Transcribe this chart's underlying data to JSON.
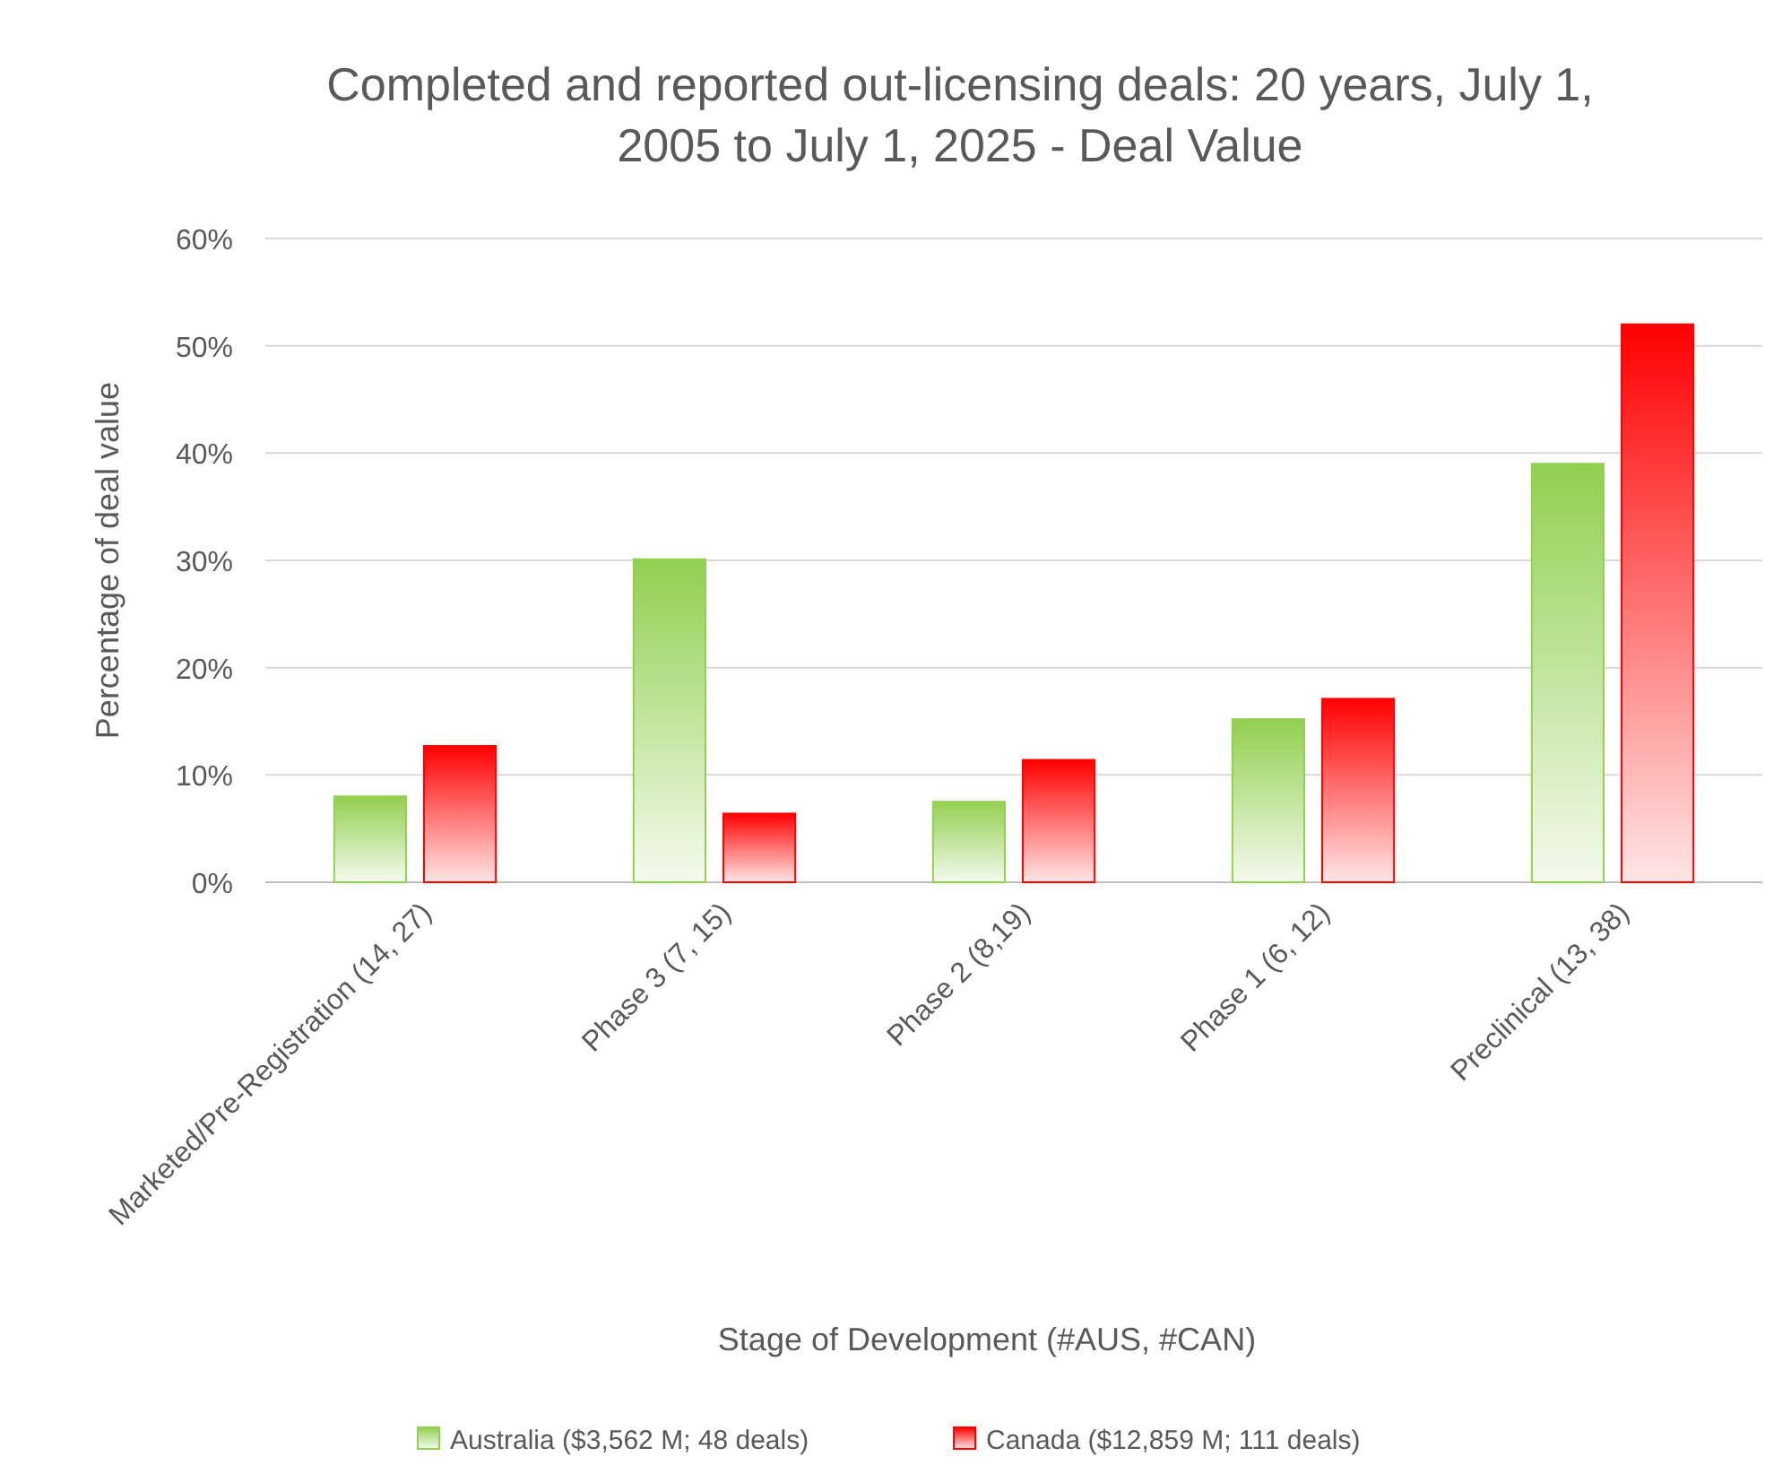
{
  "chart_data": {
    "type": "bar",
    "title": "Completed and reported out-licensing deals: 20 years, July 1, 2005 to July 1, 2025 - Deal Value",
    "xlabel": "Stage of Development (#AUS, #CAN)",
    "ylabel": "Percentage of deal value",
    "categories": [
      "Marketed/Pre-Registration (14, 27)",
      "Phase 3 (7, 15)",
      "Phase 2 (8,19)",
      "Phase 1 (6, 12)",
      "Preclinical (13, 38)"
    ],
    "series": [
      {
        "name": "Australia ($3,562 M; 48 deals)",
        "color": "#92d050",
        "values": [
          8.0,
          30.1,
          7.5,
          15.2,
          39.0
        ]
      },
      {
        "name": "Canada ($12,859 M; 111 deals)",
        "color": "#ff0000",
        "values": [
          12.7,
          6.4,
          11.4,
          17.1,
          52.0
        ]
      }
    ],
    "ylim": [
      0,
      60
    ],
    "yticks": [
      {
        "value": 0,
        "label": "0%"
      },
      {
        "value": 10,
        "label": "10%"
      },
      {
        "value": 20,
        "label": "20%"
      },
      {
        "value": 30,
        "label": "30%"
      },
      {
        "value": 40,
        "label": "40%"
      },
      {
        "value": 50,
        "label": "50%"
      },
      {
        "value": 60,
        "label": "60%"
      }
    ],
    "grid": "y",
    "legend": "bottom"
  }
}
